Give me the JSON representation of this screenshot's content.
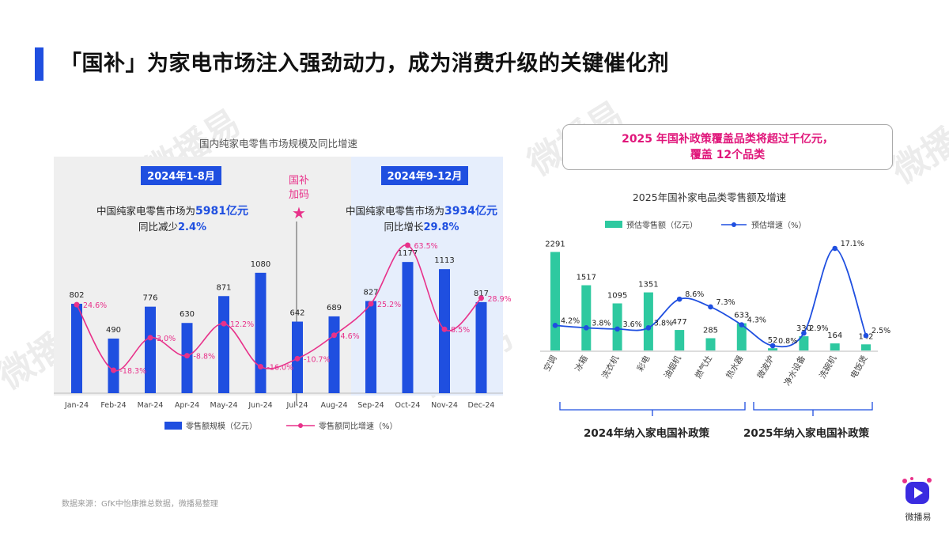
{
  "page": {
    "title": "「国补」为家电市场注入强劲动力，成为消费升级的关键催化剂",
    "watermark": "微播易",
    "source": "数据来源：GfK中怡康推总数据，微播易整理",
    "brand": "微播易"
  },
  "left_chart": {
    "title": "国内纯家电零售市场规模及同比增速",
    "period1": {
      "label": "2024年1-8月",
      "line1": "中国纯家电零售市场为",
      "value": "5981亿元",
      "line2": "同比减少",
      "pct": "2.4%"
    },
    "period2": {
      "label": "2024年9-12月",
      "line1": "中国纯家电零售市场为",
      "value": "3934亿元",
      "line2": "同比增长",
      "pct": "29.8%"
    },
    "marker": {
      "line1": "国补",
      "line2": "加码"
    },
    "legend": {
      "bar": "零售额规模（亿元）",
      "line": "零售额同比增速（%）"
    },
    "colors": {
      "bar": "#1f4fe0",
      "line": "#e8318a",
      "left_bg": "#efefef",
      "right_bg": "#e6eefc"
    }
  },
  "right_chart": {
    "callout_line1_a": "2025",
    "callout_line1_b": " 年国补政策覆盖品类将超过千亿元，",
    "callout_line2_a": "覆盖 ",
    "callout_line2_b": "12个品类",
    "title": "2025年国补家电品类零售额及增速",
    "legend": {
      "bar": "预估零售额（亿元）",
      "line": "预估增速（%）"
    },
    "policy_2024": "2024年纳入家电国补政策",
    "policy_2025": "2025年纳入家电国补政策",
    "colors": {
      "bar": "#2ec9a0",
      "line": "#1f4fe0"
    }
  },
  "chart_data": [
    {
      "type": "bar",
      "title": "国内纯家电零售市场规模及同比增速",
      "categories": [
        "Jan-24",
        "Feb-24",
        "Mar-24",
        "Apr-24",
        "May-24",
        "Jun-24",
        "Jul-24",
        "Aug-24",
        "Sep-24",
        "Oct-24",
        "Nov-24",
        "Dec-24"
      ],
      "series": [
        {
          "name": "零售额规模（亿元）",
          "type": "bar",
          "values": [
            802,
            490,
            776,
            630,
            871,
            1080,
            642,
            689,
            827,
            1177,
            1113,
            817
          ]
        },
        {
          "name": "零售额同比增速（%）",
          "type": "line",
          "values": [
            24.6,
            -18.3,
            3.0,
            -8.8,
            12.2,
            -16.0,
            -10.7,
            4.6,
            25.2,
            63.5,
            8.5,
            28.9
          ],
          "labels": [
            "24.6%",
            "-18.3%",
            "3.0%",
            "-8.8%",
            "12.2%",
            "-16.0%",
            "-10.7%",
            "4.6%",
            "25.2%",
            "63.5%",
            "8.5%",
            "28.9%"
          ]
        }
      ]
    },
    {
      "type": "bar",
      "title": "2025年国补家电品类零售额及增速",
      "categories": [
        "空调",
        "冰箱",
        "洗衣机",
        "彩电",
        "油烟机",
        "燃气灶",
        "热水器",
        "微波炉",
        "净水设备",
        "洗碗机",
        "电饭煲"
      ],
      "series": [
        {
          "name": "预估零售额（亿元）",
          "type": "bar",
          "values": [
            2291,
            1517,
            1095,
            1351,
            477,
            285,
            633,
            52,
            330,
            164,
            142
          ],
          "labels": [
            "2291",
            "1517",
            "1095",
            "1351",
            "477",
            "285",
            "633",
            "52",
            "330",
            "164",
            "142"
          ]
        },
        {
          "name": "预估增速（%）",
          "type": "line",
          "values": [
            4.2,
            3.8,
            3.6,
            3.8,
            8.6,
            7.3,
            4.3,
            0.8,
            2.9,
            17.1,
            2.5
          ],
          "labels": [
            "4.2%",
            "3.8%",
            "3.6%",
            "3.8%",
            "8.6%",
            "7.3%",
            "4.3%",
            "0.8%",
            "2.9%",
            "17.1%",
            "2.5%"
          ]
        }
      ]
    }
  ]
}
